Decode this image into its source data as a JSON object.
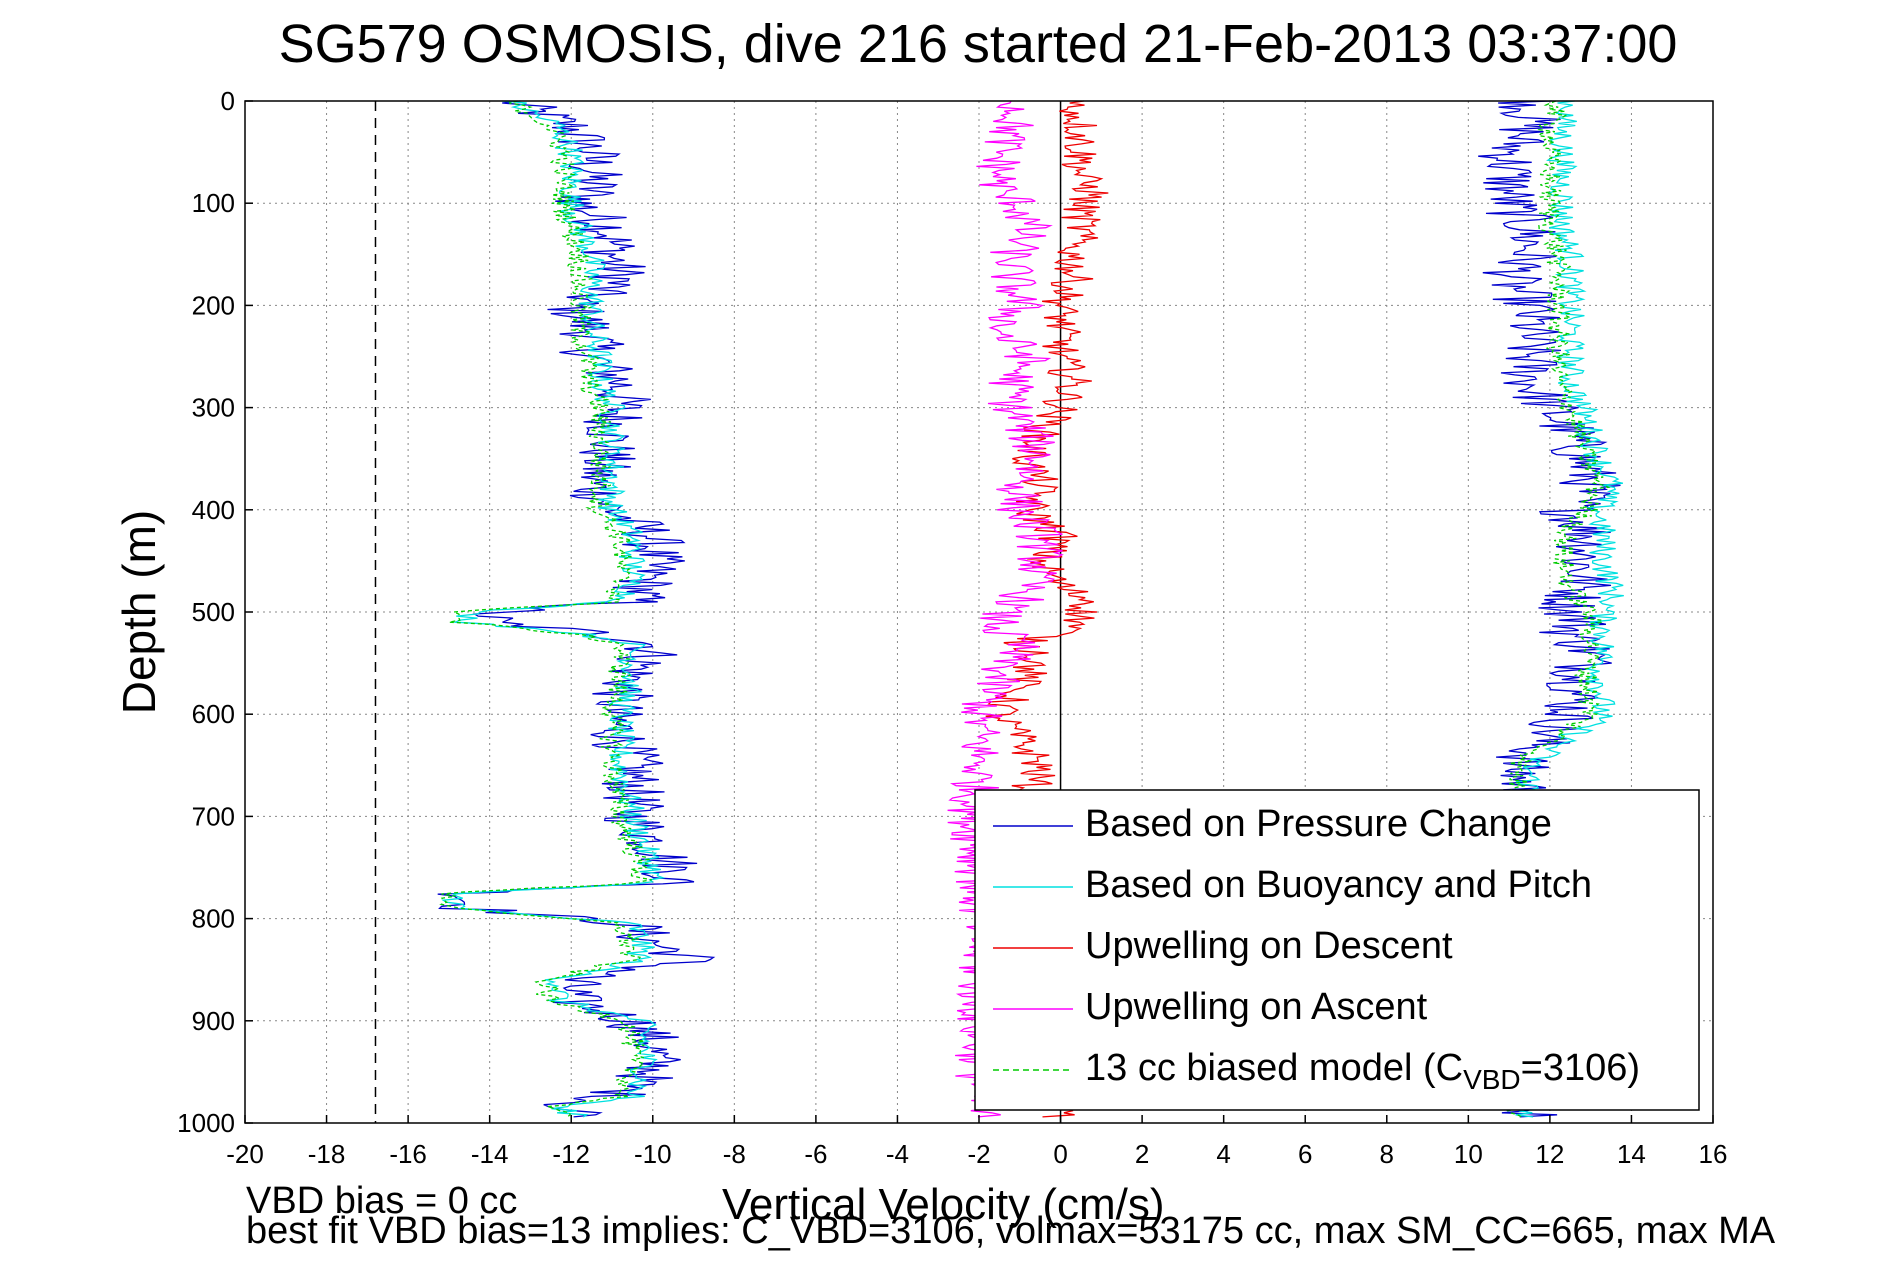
{
  "chart_data": {
    "type": "line",
    "title": "SG579 OSMOSIS, dive 216 started 21-Feb-2013 03:37:00",
    "xlabel": "Vertical Velocity (cm/s)",
    "ylabel": "Depth (m)",
    "xlim": [
      -20,
      16
    ],
    "ylim": [
      0,
      1000
    ],
    "y_reversed": true,
    "grid": true,
    "x_ticks": [
      "-20",
      "-18",
      "-16",
      "-14",
      "-12",
      "-10",
      "-8",
      "-6",
      "-4",
      "-2",
      "0",
      "2",
      "4",
      "6",
      "8",
      "10",
      "12",
      "14",
      "16"
    ],
    "y_ticks": [
      "0",
      "100",
      "200",
      "300",
      "400",
      "500",
      "600",
      "700",
      "800",
      "900",
      "1000"
    ],
    "legend_position": "bottom-right",
    "reference_lines": [
      {
        "x": 0,
        "style": "solid",
        "color": "#000000"
      },
      {
        "x": -16.8,
        "style": "dashed",
        "color": "#000000"
      }
    ],
    "depth": [
      0,
      25,
      50,
      75,
      90,
      100,
      125,
      150,
      175,
      200,
      225,
      250,
      275,
      300,
      325,
      350,
      375,
      400,
      425,
      450,
      475,
      490,
      500,
      510,
      520,
      530,
      540,
      560,
      600,
      650,
      700,
      750,
      765,
      775,
      790,
      805,
      820,
      840,
      860,
      880,
      900,
      920,
      950,
      975,
      985,
      995
    ],
    "series": [
      {
        "name": "Based on Pressure Change",
        "color": "#0000cc",
        "noise": 0.8,
        "descent": [
          -13.5,
          -12,
          -11.5,
          -11.5,
          -11.5,
          -11.8,
          -11,
          -11,
          -10.8,
          -12,
          -11.5,
          -11.5,
          -10.8,
          -10.8,
          -11,
          -11.2,
          -11.5,
          -11,
          -10,
          -10,
          -10.2,
          -10.5,
          -14,
          -14,
          -11.5,
          -10,
          -10,
          -10.5,
          -11,
          -10.5,
          -10.5,
          -9.5,
          -9.5,
          -14.5,
          -14.5,
          -10.5,
          -10.2,
          -9,
          -12,
          -12,
          -10.5,
          -10,
          -10,
          -11,
          -12.5,
          -11
        ],
        "ascent": [
          11.5,
          11.5,
          11,
          11,
          11,
          11,
          11.5,
          11.5,
          11,
          11.5,
          11.5,
          11.5,
          11.5,
          12,
          12.5,
          12.8,
          13,
          12.5,
          13,
          12.8,
          12.8,
          12.5,
          12.5,
          12.8,
          12.5,
          12.8,
          13,
          12.8,
          12.5,
          11.2,
          11.5,
          11.5,
          11.5,
          11.5,
          11.5,
          11.5,
          11.5,
          11.5,
          11.5,
          11.5,
          11.5,
          11.5,
          11.5,
          11.5,
          11.5,
          11.5
        ]
      },
      {
        "name": "Based on Buoyancy and Pitch",
        "color": "#00e0e0",
        "noise": 0.35,
        "descent": [
          -13.5,
          -12.3,
          -12,
          -12,
          -12,
          -12,
          -11.8,
          -11.5,
          -11.5,
          -11.5,
          -11.5,
          -11.3,
          -11.3,
          -11,
          -11,
          -11,
          -11,
          -11,
          -10.5,
          -10.5,
          -10.5,
          -10.8,
          -14.5,
          -14.5,
          -12,
          -10.5,
          -10.5,
          -10.5,
          -10.8,
          -10.8,
          -10.5,
          -10,
          -10,
          -14.8,
          -14.8,
          -10.5,
          -10.3,
          -10.3,
          -12.3,
          -12.3,
          -10.3,
          -10.2,
          -10.2,
          -10.5,
          -12.5,
          -11.5
        ],
        "ascent": [
          12.5,
          12.3,
          12.3,
          12.3,
          12.3,
          12.3,
          12.3,
          12.5,
          12.5,
          12.5,
          12.5,
          12.5,
          12.5,
          12.8,
          13,
          13.2,
          13.5,
          13.2,
          13.3,
          13.3,
          13.5,
          13.5,
          13.3,
          13.3,
          13.3,
          13.3,
          13.3,
          13.2,
          13.3,
          11.5,
          11.5,
          11.5,
          11.5,
          11.5,
          11.5,
          11.5,
          11.5,
          11.5,
          11.5,
          11.5,
          11.5,
          11.5,
          11.5,
          11.5,
          11.5,
          11.5
        ]
      },
      {
        "name": "Upwelling on Descent",
        "color": "#ee0000",
        "noise": 0.5,
        "values": [
          0.3,
          0.5,
          0.5,
          0.5,
          0.8,
          0.5,
          0.5,
          0.3,
          0.3,
          0,
          0,
          0,
          0.3,
          0,
          -0.5,
          -0.8,
          -0.5,
          -0.8,
          0,
          -0.5,
          0,
          0.8,
          0.5,
          0.5,
          0,
          -1,
          -0.5,
          -0.8,
          -1.5,
          -0.5,
          -1,
          -1.5,
          -1.5,
          -1.5,
          -1.5,
          -1.2,
          -1.2,
          -1.2,
          -1.2,
          -1.2,
          -1.2,
          -1.2,
          -1.2,
          -1.2,
          0,
          0
        ]
      },
      {
        "name": "Upwelling on Ascent",
        "color": "#ff00ff",
        "noise": 0.6,
        "values": [
          -1,
          -1.2,
          -1.5,
          -1.5,
          -1.5,
          -1,
          -0.8,
          -1.2,
          -1.2,
          -1,
          -1.5,
          -0.8,
          -1.2,
          -1.2,
          -0.8,
          -0.5,
          -1,
          -1,
          -0.5,
          -0.5,
          -0.8,
          -1,
          -1.5,
          -1.5,
          -1.5,
          -1,
          -1.2,
          -1.5,
          -2,
          -2,
          -2.2,
          -2,
          -2,
          -2,
          -2,
          -2,
          -2,
          -2,
          -2,
          -2,
          -2,
          -2,
          -2,
          -2,
          -2,
          -2
        ]
      },
      {
        "name": "13 cc biased model (C_VBD=3106)",
        "color": "#00cc00",
        "dashed": true,
        "noise": 0.3,
        "descent": [
          -13.5,
          -12.5,
          -12.2,
          -12.2,
          -12.2,
          -12.2,
          -12,
          -11.8,
          -11.8,
          -11.8,
          -11.8,
          -11.6,
          -11.6,
          -11.3,
          -11.3,
          -11.3,
          -11.3,
          -11.3,
          -10.8,
          -10.8,
          -10.8,
          -11,
          -14.8,
          -14.8,
          -12.3,
          -10.8,
          -10.8,
          -10.8,
          -11,
          -11,
          -10.8,
          -10.3,
          -10.3,
          -15,
          -15,
          -10.8,
          -10.6,
          -10.6,
          -12.6,
          -12.6,
          -10.6,
          -10.5,
          -10.5,
          -10.8,
          -12.8,
          -11.8
        ],
        "ascent": [
          12.2,
          12,
          12,
          12,
          12,
          12,
          12,
          12.2,
          12.2,
          12.2,
          12.2,
          12.2,
          12.2,
          12.5,
          12.7,
          12.9,
          13.2,
          12.9,
          12.4,
          12.3,
          12.5,
          12.7,
          13,
          13,
          13,
          13,
          13,
          12.9,
          13,
          11.2,
          11.2,
          11.2,
          11.2,
          11.2,
          11.2,
          11.2,
          11.2,
          11.2,
          11.2,
          11.2,
          11.2,
          11.2,
          11.2,
          11.2,
          11.2,
          11.2
        ]
      }
    ],
    "legend": {
      "entries": [
        "Based on Pressure Change",
        "Based on Buoyancy and Pitch",
        "Upwelling on Descent",
        "Upwelling on Ascent"
      ],
      "model_prefix": "13 cc biased model (C",
      "model_sub": "VBD",
      "model_suffix": "=3106)"
    },
    "annotations": {
      "line1": "VBD bias = 0 cc",
      "line2": "best fit VBD bias=13 implies: C_VBD=3106, volmax=53175 cc, max SM_CC=665, max MA"
    }
  }
}
